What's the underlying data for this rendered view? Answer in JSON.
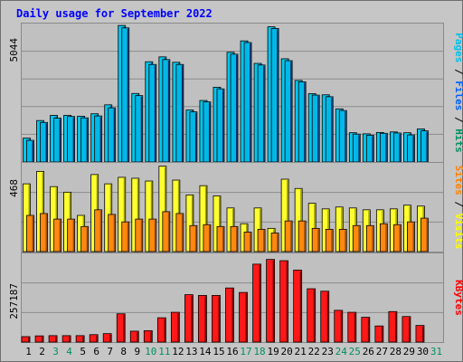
{
  "title": "Daily usage for September 2022",
  "colors": {
    "background": "#c6c6c6",
    "panel": "#c0c0c0",
    "title": "#0000ff",
    "pages": "#00c0e8",
    "files": "#0060ff",
    "hits": "#009060",
    "visits": "#ffff00",
    "sites": "#ff8000",
    "kbytes": "#ff0000",
    "weekend_day": "#009060",
    "weekday": "#000000"
  },
  "chart_data": [
    {
      "type": "bar",
      "name": "hits-files-pages",
      "categories": [
        "1",
        "2",
        "3",
        "4",
        "5",
        "6",
        "7",
        "8",
        "9",
        "10",
        "11",
        "12",
        "13",
        "14",
        "15",
        "16",
        "17",
        "18",
        "19",
        "20",
        "21",
        "22",
        "23",
        "24",
        "25",
        "26",
        "27",
        "28",
        "29",
        "30",
        "31"
      ],
      "weekend_days": [
        "3",
        "4",
        "10",
        "11",
        "17",
        "18",
        "24",
        "25",
        "31"
      ],
      "ytick": "5044",
      "ylim": [
        0,
        5044
      ],
      "right_label": [
        {
          "text": "Pages",
          "color": "#00c0e8"
        },
        {
          "text": "Files",
          "color": "#0060ff"
        },
        {
          "text": "Hits",
          "color": "#009060"
        }
      ],
      "series": [
        {
          "name": "Hits",
          "values": [
            880,
            1530,
            1720,
            1720,
            1690,
            1780,
            2110,
            5040,
            2530,
            3700,
            3880,
            3680,
            1920,
            2270,
            2760,
            4050,
            4470,
            3640,
            4990,
            3810,
            3010,
            2520,
            2480,
            1960,
            1080,
            1040,
            1090,
            1110,
            1080,
            1220,
            null
          ]
        },
        {
          "name": "Pages",
          "values": [
            800,
            1460,
            1620,
            1680,
            1630,
            1700,
            2000,
            4950,
            2450,
            3600,
            3780,
            3600,
            1850,
            2220,
            2700,
            3980,
            4410,
            3580,
            4930,
            3740,
            2960,
            2470,
            2410,
            1900,
            1030,
            990,
            1060,
            1070,
            1000,
            1150,
            null
          ]
        }
      ]
    },
    {
      "type": "bar",
      "name": "visits-sites",
      "categories": [
        "1",
        "2",
        "3",
        "4",
        "5",
        "6",
        "7",
        "8",
        "9",
        "10",
        "11",
        "12",
        "13",
        "14",
        "15",
        "16",
        "17",
        "18",
        "19",
        "20",
        "21",
        "22",
        "23",
        "24",
        "25",
        "26",
        "27",
        "28",
        "29",
        "30",
        "31"
      ],
      "ytick": "468",
      "ylim": [
        0,
        468
      ],
      "right_label": [
        {
          "text": "Sites",
          "color": "#ff8000"
        },
        {
          "text": "Visits",
          "color": "#ffff00"
        }
      ],
      "series": [
        {
          "name": "Visits",
          "values": [
            365,
            432,
            350,
            320,
            195,
            415,
            365,
            400,
            395,
            380,
            460,
            385,
            305,
            355,
            300,
            235,
            150,
            235,
            125,
            390,
            340,
            260,
            230,
            240,
            235,
            225,
            225,
            230,
            250,
            245,
            null
          ]
        },
        {
          "name": "Sites",
          "values": [
            195,
            205,
            175,
            175,
            135,
            225,
            200,
            160,
            175,
            175,
            215,
            205,
            140,
            145,
            135,
            135,
            105,
            120,
            100,
            165,
            165,
            125,
            120,
            120,
            140,
            140,
            150,
            145,
            160,
            180,
            null
          ]
        }
      ]
    },
    {
      "type": "bar",
      "name": "kbytes",
      "categories": [
        "1",
        "2",
        "3",
        "4",
        "5",
        "6",
        "7",
        "8",
        "9",
        "10",
        "11",
        "12",
        "13",
        "14",
        "15",
        "16",
        "17",
        "18",
        "19",
        "20",
        "21",
        "22",
        "23",
        "24",
        "25",
        "26",
        "27",
        "28",
        "29",
        "30",
        "31"
      ],
      "ytick": "257187",
      "ylim": [
        0,
        350000
      ],
      "right_label": [
        {
          "text": "KBytes",
          "color": "#ff0000"
        }
      ],
      "series": [
        {
          "name": "KBytes",
          "values": [
            22000,
            25000,
            26000,
            26000,
            26000,
            30000,
            34000,
            114000,
            44000,
            46000,
            98000,
            120000,
            191000,
            188000,
            188000,
            218000,
            200000,
            314000,
            333000,
            328000,
            290000,
            215000,
            205000,
            128000,
            120000,
            100000,
            65000,
            123000,
            103000,
            67000,
            null
          ]
        }
      ]
    }
  ]
}
